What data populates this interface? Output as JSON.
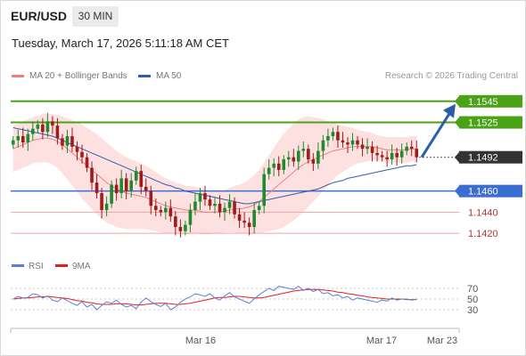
{
  "header": {
    "symbol": "EUR/USD",
    "timeframe": "30 MIN",
    "datetime": "Tuesday, March 17, 2026 5:11:18 AM CET"
  },
  "legend": {
    "items": [
      {
        "label": "MA 20 + Bollinger Bands",
        "color": "#f08080"
      },
      {
        "label": "MA 50",
        "color": "#2f5fa8"
      }
    ],
    "watermark": "Research © 2026 Trading Central"
  },
  "colors": {
    "bull": "#1f8a2e",
    "bear": "#a01c1c",
    "resistance": "#4aa317",
    "support": "#3a6ed1",
    "target": "#b83232",
    "price": "#333333",
    "arrow": "#2b5ea7",
    "bb": "#fde1e1",
    "ma20": "#f08080",
    "ma50": "#2f5fa8",
    "rsi": "#5b7fd6",
    "rsi_ma": "#e02020"
  },
  "chart_data": [
    {
      "type": "candlestick",
      "x_labels": [
        "Mar 16",
        "Mar 17",
        "Mar 23"
      ],
      "ylim": [
        1.141,
        1.156
      ],
      "levels": [
        {
          "value": 1.1545,
          "label": "1.1545",
          "kind": "resistance"
        },
        {
          "value": 1.1525,
          "label": "1.1525",
          "kind": "resistance"
        },
        {
          "value": 1.1492,
          "label": "1.1492",
          "kind": "price"
        },
        {
          "value": 1.146,
          "label": "1.1460",
          "kind": "support"
        },
        {
          "value": 1.144,
          "label": "1.1440",
          "kind": "target"
        },
        {
          "value": 1.142,
          "label": "1.1420",
          "kind": "target"
        }
      ],
      "forecast": {
        "from": 1.1492,
        "to": 1.1545
      },
      "closes": [
        1.1508,
        1.1512,
        1.1506,
        1.1514,
        1.1519,
        1.1523,
        1.1516,
        1.1526,
        1.1522,
        1.151,
        1.1503,
        1.1512,
        1.1502,
        1.1497,
        1.1492,
        1.1482,
        1.1468,
        1.1458,
        1.1442,
        1.1448,
        1.1466,
        1.1458,
        1.1472,
        1.146,
        1.147,
        1.1479,
        1.1464,
        1.146,
        1.1446,
        1.1442,
        1.144,
        1.1444,
        1.1436,
        1.1426,
        1.1422,
        1.1428,
        1.1442,
        1.145,
        1.1458,
        1.1452,
        1.1446,
        1.1448,
        1.144,
        1.1444,
        1.145,
        1.1438,
        1.1432,
        1.143,
        1.1426,
        1.1442,
        1.1446,
        1.1476,
        1.1482,
        1.1486,
        1.148,
        1.149,
        1.1492,
        1.1488,
        1.1498,
        1.15,
        1.149,
        1.1486,
        1.1498,
        1.1508,
        1.1512,
        1.1516,
        1.1508,
        1.1506,
        1.1504,
        1.1508,
        1.1504,
        1.15,
        1.1502,
        1.1496,
        1.1494,
        1.1492,
        1.149,
        1.1496,
        1.1492,
        1.1498,
        1.1502,
        1.15,
        1.1492
      ],
      "ma20": [
        1.15,
        1.1502,
        1.1504,
        1.1506,
        1.1508,
        1.1509,
        1.151,
        1.151,
        1.1509,
        1.1507,
        1.1504,
        1.15,
        1.1496,
        1.1492,
        1.1488,
        1.1484,
        1.148,
        1.1476,
        1.1472,
        1.1468,
        1.1465,
        1.1462,
        1.146,
        1.1458,
        1.1457,
        1.1456,
        1.1455,
        1.1454,
        1.1452,
        1.145,
        1.1448,
        1.1446,
        1.1445,
        1.1444,
        1.1443,
        1.1442,
        1.1442,
        1.1442,
        1.1441,
        1.144,
        1.144,
        1.144,
        1.144,
        1.1441,
        1.1442,
        1.1443,
        1.1443,
        1.1444,
        1.1445,
        1.1447,
        1.145,
        1.1454,
        1.1458,
        1.1462,
        1.1466,
        1.147,
        1.1474,
        1.1478,
        1.1482,
        1.1485,
        1.1488,
        1.149,
        1.1492,
        1.1494,
        1.1496,
        1.1498,
        1.1499,
        1.15,
        1.1501,
        1.1502,
        1.1502,
        1.1502,
        1.1502,
        1.1502,
        1.1501,
        1.15,
        1.1499,
        1.1499,
        1.1499,
        1.1499,
        1.1499,
        1.15,
        1.15
      ],
      "ma50": [
        1.152,
        1.1519,
        1.1518,
        1.1517,
        1.1516,
        1.1515,
        1.1514,
        1.1513,
        1.1512,
        1.151,
        1.1508,
        1.1506,
        1.1504,
        1.1502,
        1.15,
        1.1498,
        1.1496,
        1.1494,
        1.1492,
        1.149,
        1.1488,
        1.1486,
        1.1484,
        1.1482,
        1.148,
        1.1478,
        1.1476,
        1.1474,
        1.1472,
        1.147,
        1.1468,
        1.1466,
        1.1465,
        1.1463,
        1.1462,
        1.146,
        1.1459,
        1.1458,
        1.1457,
        1.1456,
        1.1455,
        1.1454,
        1.1453,
        1.1452,
        1.1451,
        1.145,
        1.1449,
        1.1448,
        1.1448,
        1.1449,
        1.145,
        1.1451,
        1.1452,
        1.1453,
        1.1454,
        1.1455,
        1.1456,
        1.1457,
        1.1458,
        1.1459,
        1.146,
        1.1461,
        1.1462,
        1.1464,
        1.1466,
        1.1468,
        1.1469,
        1.147,
        1.1472,
        1.1473,
        1.1474,
        1.1475,
        1.1476,
        1.1477,
        1.1478,
        1.1479,
        1.148,
        1.1481,
        1.1482,
        1.1483,
        1.1484,
        1.1484,
        1.1485
      ],
      "bb_width": [
        0.0022,
        0.0022,
        0.0022,
        0.0022,
        0.0022,
        0.0022,
        0.0023,
        0.0023,
        0.0024,
        0.0025,
        0.0027,
        0.0029,
        0.0031,
        0.0033,
        0.0035,
        0.0036,
        0.0037,
        0.0038,
        0.0038,
        0.0038,
        0.0037,
        0.0036,
        0.0035,
        0.0034,
        0.0033,
        0.0032,
        0.0031,
        0.003,
        0.0029,
        0.0028,
        0.0027,
        0.0026,
        0.0025,
        0.0024,
        0.0024,
        0.0023,
        0.0023,
        0.0022,
        0.0022,
        0.0021,
        0.0021,
        0.002,
        0.002,
        0.002,
        0.0021,
        0.0022,
        0.0023,
        0.0024,
        0.0026,
        0.0028,
        0.003,
        0.0033,
        0.0036,
        0.0039,
        0.0042,
        0.0044,
        0.0045,
        0.0046,
        0.0046,
        0.0045,
        0.0043,
        0.004,
        0.0037,
        0.0034,
        0.003,
        0.0027,
        0.0024,
        0.0022,
        0.002,
        0.0018,
        0.0016,
        0.0015,
        0.0014,
        0.0013,
        0.0012,
        0.0012,
        0.0012,
        0.0012,
        0.0012,
        0.0012,
        0.0012,
        0.0012,
        0.0012
      ]
    },
    {
      "type": "line",
      "name": "RSI",
      "legend": [
        {
          "label": "RSI",
          "color": "#5b7fd6"
        },
        {
          "label": "9MA",
          "color": "#e02020"
        }
      ],
      "ylim": [
        20,
        80
      ],
      "y_ticks": [
        {
          "value": 70,
          "label": "70"
        },
        {
          "value": 50,
          "label": "50"
        },
        {
          "value": 30,
          "label": "30"
        }
      ],
      "rsi": [
        50,
        55,
        52,
        53,
        60,
        58,
        52,
        56,
        48,
        45,
        52,
        47,
        42,
        38,
        45,
        35,
        40,
        30,
        38,
        45,
        42,
        48,
        40,
        35,
        38,
        32,
        44,
        52,
        45,
        40,
        36,
        42,
        30,
        35,
        44,
        50,
        54,
        60,
        58,
        55,
        60,
        52,
        48,
        56,
        62,
        54,
        50,
        46,
        42,
        50,
        58,
        64,
        70,
        66,
        74,
        72,
        70,
        68,
        74,
        66,
        70,
        64,
        68,
        60,
        62,
        56,
        58,
        52,
        55,
        48,
        52,
        50,
        48,
        46,
        44,
        48,
        46,
        52,
        48,
        50,
        50,
        48,
        50
      ],
      "rsi_ma": [
        50,
        51,
        52,
        52,
        53,
        54,
        54,
        55,
        54,
        53,
        52,
        51,
        49,
        47,
        46,
        44,
        43,
        41,
        40,
        40,
        40,
        41,
        41,
        41,
        40,
        39,
        39,
        40,
        41,
        42,
        42,
        42,
        41,
        40,
        40,
        41,
        42,
        44,
        46,
        48,
        50,
        52,
        53,
        53,
        54,
        55,
        55,
        54,
        53,
        52,
        52,
        53,
        55,
        57,
        59,
        61,
        63,
        65,
        66,
        67,
        68,
        68,
        68,
        67,
        66,
        65,
        63,
        62,
        60,
        59,
        57,
        56,
        54,
        53,
        52,
        51,
        50,
        50,
        50,
        50,
        49,
        49,
        49
      ]
    }
  ]
}
